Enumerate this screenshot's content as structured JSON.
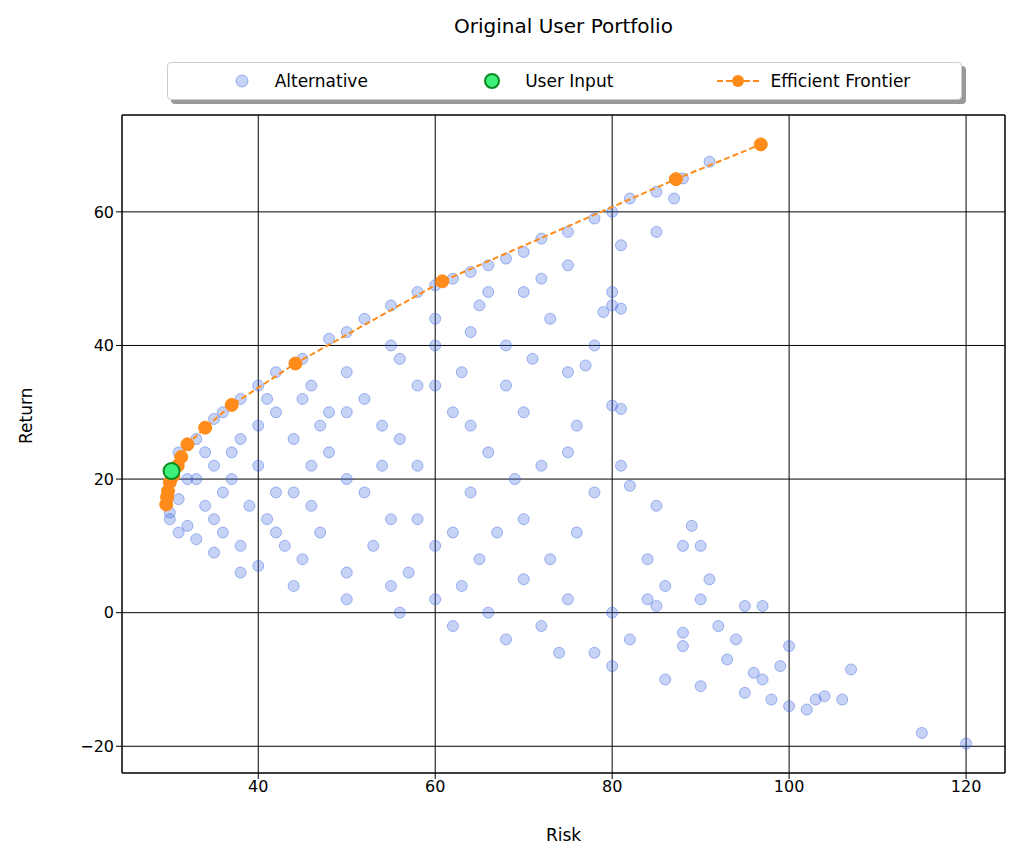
{
  "chart_data": {
    "type": "scatter",
    "title": "Original User Portfolio",
    "x_label": "Risk",
    "y_label": "Return",
    "xlim": [
      24.6,
      124.4
    ],
    "ylim": [
      -24,
      74.5
    ],
    "xticks": [
      40,
      60,
      80,
      100,
      120
    ],
    "yticks": [
      -20,
      0,
      20,
      40,
      60
    ],
    "grid": true,
    "legend": "top",
    "series": [
      {
        "name": "Alternative",
        "color": "#4169e1",
        "marker": "circle",
        "x": [
          31,
          33,
          35,
          36,
          38,
          40,
          42,
          45,
          48,
          50,
          52,
          55,
          58,
          60,
          62,
          64,
          66,
          68,
          70,
          72,
          75,
          78,
          80,
          82,
          85,
          88,
          91,
          87,
          85,
          81,
          35,
          40,
          45,
          50,
          55,
          60,
          65,
          70,
          75,
          80,
          78,
          73,
          68,
          63,
          58,
          62,
          70,
          75,
          80,
          66,
          72,
          81,
          78,
          85,
          90,
          84,
          76,
          70,
          64,
          58,
          54,
          48,
          44,
          40,
          36,
          32,
          30,
          31,
          33,
          35,
          38,
          42,
          46,
          50,
          55,
          60,
          65,
          70,
          75,
          80,
          85,
          90,
          95,
          97,
          100,
          92,
          88,
          82,
          78,
          72,
          66,
          60,
          55,
          50,
          45,
          40,
          35,
          38,
          44,
          50,
          56,
          62,
          68,
          74,
          80,
          86,
          90,
          95,
          98,
          100,
          102,
          104,
          106,
          107,
          99,
          115,
          120,
          96,
          93,
          88,
          84,
          91,
          88,
          82,
          75,
          68,
          72,
          66,
          56,
          52,
          46,
          42,
          37,
          34,
          31,
          30,
          32,
          36,
          41,
          47,
          53,
          57,
          63,
          67,
          73,
          86,
          94,
          97,
          103,
          81,
          80,
          79,
          81,
          71,
          77,
          69,
          76,
          60,
          64,
          89,
          33,
          38,
          42,
          46,
          50,
          44,
          48,
          52,
          39,
          43,
          56,
          60,
          64,
          58,
          62,
          54,
          47,
          41,
          34,
          37
        ],
        "values": [
          24,
          26,
          29,
          30,
          32,
          34,
          36,
          38,
          41,
          42,
          44,
          46,
          48,
          49,
          50,
          51,
          52,
          53,
          54,
          56,
          57,
          59,
          60,
          62,
          63,
          65,
          67.5,
          62,
          57,
          55,
          22,
          28,
          32,
          36,
          40,
          44,
          46,
          48,
          52,
          46,
          40,
          44,
          40,
          36,
          34,
          30,
          30,
          36,
          31,
          24,
          22,
          22,
          18,
          16,
          10,
          8,
          12,
          14,
          18,
          22,
          28,
          30,
          26,
          22,
          18,
          20,
          15,
          12,
          11,
          14,
          10,
          12,
          16,
          20,
          14,
          10,
          8,
          5,
          2,
          0,
          1,
          2,
          1,
          1,
          -5,
          -2,
          -5,
          -4,
          -6,
          -2,
          0,
          2,
          4,
          6,
          8,
          7,
          9,
          6,
          4,
          2,
          0,
          -2,
          -4,
          -6,
          -8,
          -10,
          -11,
          -12,
          -13,
          -14,
          -14.5,
          -12.5,
          -13,
          -8.5,
          -8,
          -18,
          -19.6,
          -9,
          -7,
          -3,
          2,
          5,
          10,
          19,
          24,
          34,
          50,
          48,
          38,
          32,
          22,
          18,
          24,
          16,
          17,
          14,
          13,
          12,
          14,
          12,
          10,
          6,
          4,
          12,
          8,
          4,
          -4,
          -10,
          -13,
          30.5,
          48,
          45,
          45.5,
          38,
          37,
          20,
          28,
          40,
          42,
          13,
          20,
          26,
          30,
          34,
          30,
          18,
          24,
          18,
          16,
          10,
          26,
          34,
          28,
          14,
          12,
          22,
          28,
          32,
          24,
          20
        ]
      },
      {
        "name": "User Input",
        "color": "#3cf07a",
        "marker": "circle",
        "x": [
          30.2
        ],
        "values": [
          21.2
        ]
      },
      {
        "name": "Efficient Frontier",
        "color": "#ff8c1a",
        "marker": "circle",
        "line_style": "dashed",
        "x": [
          29.6,
          29.7,
          29.8,
          30.0,
          30.4,
          30.9,
          31.3,
          32.0,
          34.0,
          37.0,
          44.2,
          60.8,
          87.2,
          96.8
        ],
        "values": [
          16.2,
          17.3,
          18.2,
          19.5,
          20.5,
          22.0,
          23.3,
          25.2,
          27.7,
          31.1,
          37.3,
          49.6,
          64.9,
          70.1
        ]
      }
    ]
  }
}
